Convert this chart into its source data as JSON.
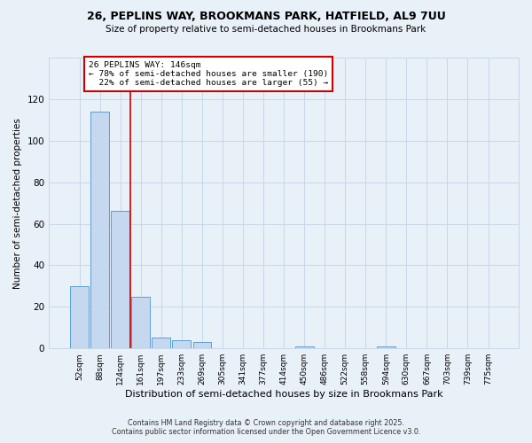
{
  "title_line1": "26, PEPLINS WAY, BROOKMANS PARK, HATFIELD, AL9 7UU",
  "title_line2": "Size of property relative to semi-detached houses in Brookmans Park",
  "xlabel": "Distribution of semi-detached houses by size in Brookmans Park",
  "ylabel": "Number of semi-detached properties",
  "categories": [
    "52sqm",
    "88sqm",
    "124sqm",
    "161sqm",
    "197sqm",
    "233sqm",
    "269sqm",
    "305sqm",
    "341sqm",
    "377sqm",
    "414sqm",
    "450sqm",
    "486sqm",
    "522sqm",
    "558sqm",
    "594sqm",
    "630sqm",
    "667sqm",
    "703sqm",
    "739sqm",
    "775sqm"
  ],
  "values": [
    30,
    114,
    66,
    25,
    5,
    4,
    3,
    0,
    0,
    0,
    0,
    1,
    0,
    0,
    0,
    1,
    0,
    0,
    0,
    0,
    0
  ],
  "bar_color": "#c5d8f0",
  "bar_edge_color": "#5a9fd4",
  "property_label": "26 PEPLINS WAY: 146sqm",
  "pct_smaller": 78,
  "count_smaller": 190,
  "pct_larger": 22,
  "count_larger": 55,
  "annotation_box_color": "#cc0000",
  "ylim": [
    0,
    140
  ],
  "yticks": [
    0,
    20,
    40,
    60,
    80,
    100,
    120
  ],
  "grid_color": "#c8d8e8",
  "background_color": "#e8f0f8",
  "footer_line1": "Contains HM Land Registry data © Crown copyright and database right 2025.",
  "footer_line2": "Contains public sector information licensed under the Open Government Licence v3.0."
}
